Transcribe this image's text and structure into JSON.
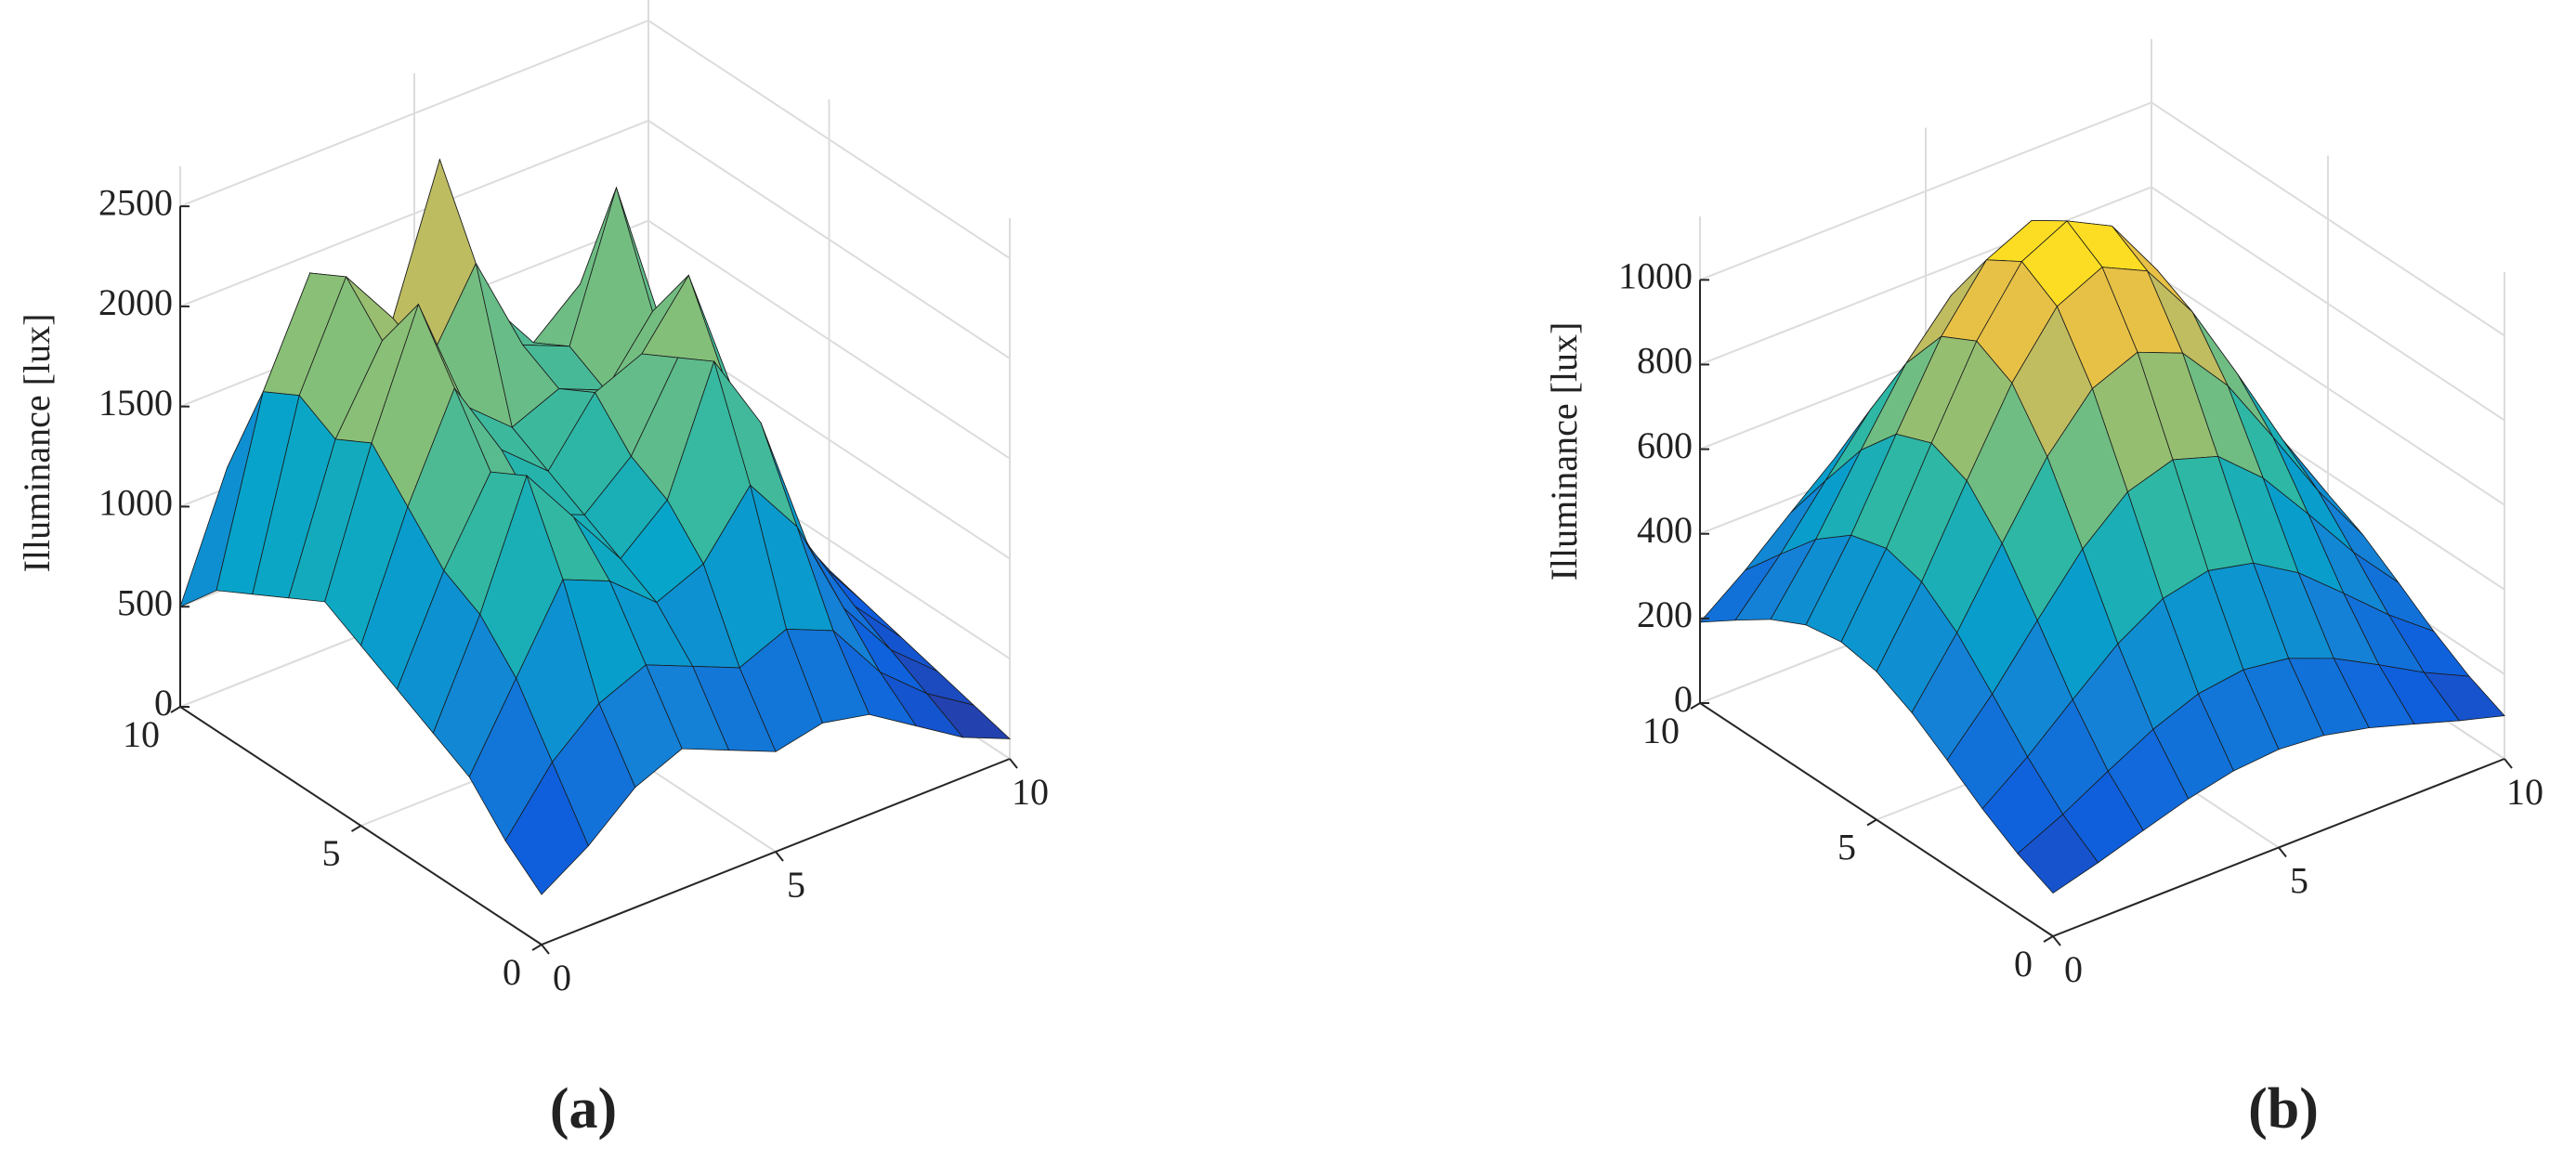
{
  "chart_data": [
    {
      "type": "surface",
      "label": "(a)",
      "zlabel": "Illuminance [lux]",
      "colormap": "parula",
      "grid": true,
      "x": [
        0,
        1,
        2,
        3,
        4,
        5,
        6,
        7,
        8,
        9,
        10
      ],
      "y": [
        0,
        1,
        2,
        3,
        4,
        5,
        6,
        7,
        8,
        9,
        10
      ],
      "z": [
        [
          250,
          400,
          600,
          700,
          600,
          500,
          550,
          500,
          350,
          200,
          100
        ],
        [
          400,
          700,
          900,
          1000,
          900,
          800,
          900,
          800,
          500,
          300,
          150
        ],
        [
          600,
          1000,
          1400,
          1300,
          1100,
          1200,
          1500,
          1200,
          700,
          400,
          200
        ],
        [
          700,
          1200,
          1800,
          1500,
          1200,
          1400,
          2000,
          1600,
          900,
          500,
          250
        ],
        [
          800,
          1300,
          1700,
          1400,
          1300,
          1500,
          1900,
          1700,
          1100,
          600,
          300
        ],
        [
          900,
          1500,
          2000,
          1600,
          1400,
          1700,
          1800,
          2100,
          1400,
          700,
          350
        ],
        [
          1000,
          1700,
          2300,
          1700,
          1500,
          1600,
          1500,
          1800,
          1300,
          700,
          350
        ],
        [
          900,
          1600,
          2000,
          1800,
          2200,
          1700,
          1600,
          2300,
          1500,
          800,
          400
        ],
        [
          800,
          1700,
          2200,
          1900,
          2600,
          1800,
          1500,
          1700,
          1200,
          700,
          350
        ],
        [
          700,
          1600,
          2100,
          1500,
          1700,
          1400,
          1200,
          1200,
          900,
          500,
          300
        ],
        [
          500,
          1100,
          1300,
          1100,
          1000,
          900,
          800,
          700,
          600,
          400,
          250
        ]
      ],
      "xlim": [
        0,
        10
      ],
      "ylim": [
        0,
        10
      ],
      "zlim": [
        0,
        2700
      ],
      "xticks": [
        0,
        5,
        10
      ],
      "yticks": [
        0,
        5,
        10
      ],
      "zticks": [
        0,
        500,
        1000,
        1500,
        2000,
        2500
      ]
    },
    {
      "type": "surface",
      "label": "(b)",
      "zlabel": "Illuminance [lux]",
      "colormap": "parula",
      "grid": true,
      "x": [
        0,
        1,
        2,
        3,
        4,
        5,
        6,
        7,
        8,
        9,
        10
      ],
      "y": [
        0,
        1,
        2,
        3,
        4,
        5,
        6,
        7,
        8,
        9,
        10
      ],
      "z": [
        [
          102,
          132,
          166,
          199,
          223,
          232,
          223,
          199,
          166,
          132,
          102
        ],
        [
          140,
          191,
          251,
          308,
          350,
          365,
          350,
          308,
          251,
          191,
          140
        ],
        [
          191,
          272,
          365,
          455,
          520,
          544,
          520,
          455,
          365,
          272,
          191
        ],
        [
          251,
          365,
          497,
          624,
          717,
          751,
          717,
          624,
          497,
          365,
          251
        ],
        [
          308,
          455,
          624,
          787,
          906,
          950,
          906,
          787,
          624,
          455,
          308
        ],
        [
          350,
          520,
          717,
          906,
          1045,
          1096,
          1045,
          906,
          717,
          520,
          350
        ],
        [
          365,
          544,
          751,
          950,
          1096,
          1150,
          1096,
          950,
          751,
          544,
          365
        ],
        [
          350,
          520,
          717,
          906,
          1045,
          1096,
          1045,
          906,
          717,
          520,
          350
        ],
        [
          308,
          455,
          624,
          787,
          906,
          950,
          906,
          787,
          624,
          455,
          308
        ],
        [
          251,
          365,
          497,
          624,
          717,
          751,
          717,
          624,
          497,
          365,
          251
        ],
        [
          191,
          272,
          365,
          455,
          520,
          544,
          520,
          455,
          365,
          272,
          191
        ]
      ],
      "xlim": [
        0,
        10
      ],
      "ylim": [
        0,
        10
      ],
      "zlim": [
        0,
        1150
      ],
      "xticks": [
        0,
        5,
        10
      ],
      "yticks": [
        0,
        5,
        10
      ],
      "zticks": [
        0,
        200,
        400,
        600,
        800,
        1000
      ]
    }
  ]
}
